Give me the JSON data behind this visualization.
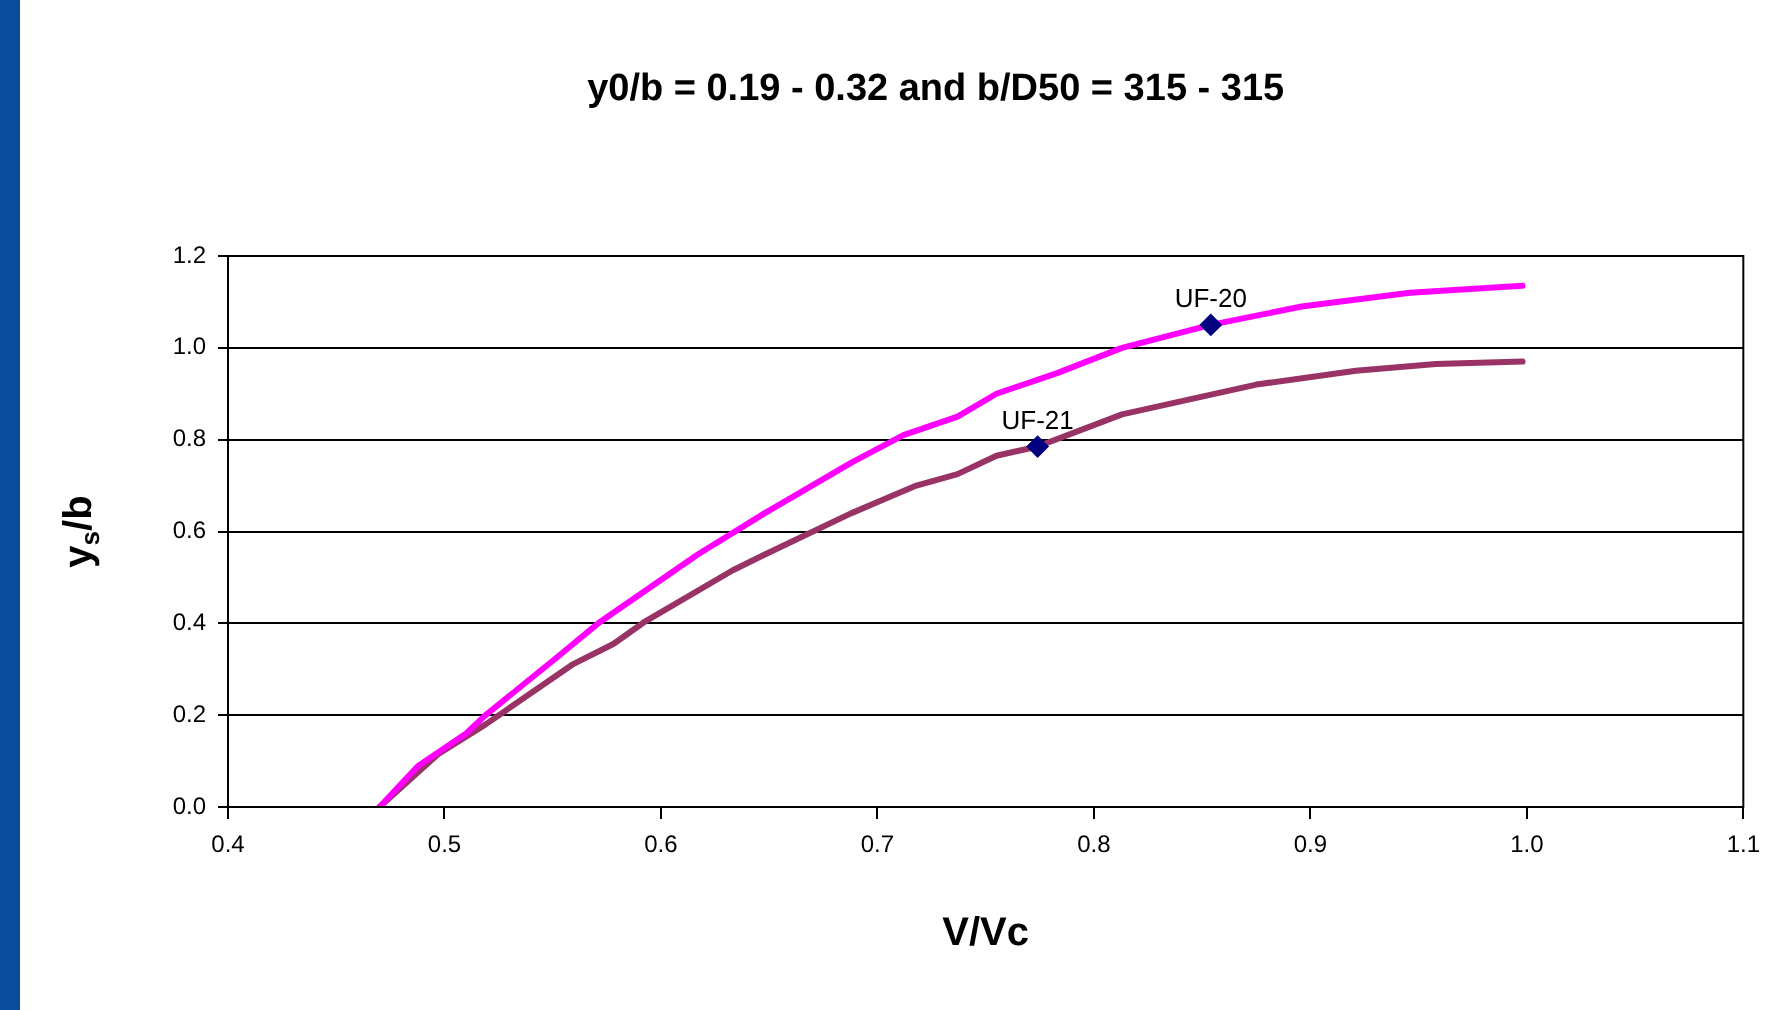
{
  "chart_data": {
    "type": "line",
    "title": "y0/b = 0.19 - 0.32 and b/D50 = 315 - 315",
    "xlabel": "V/Vc",
    "ylabel": "y$_{s}$/b",
    "xlim": [
      0.4,
      1.1
    ],
    "xticks": [
      {
        "value": 0.4,
        "label": "0.4"
      },
      {
        "value": 0.5,
        "label": "0.5"
      },
      {
        "value": 0.6,
        "label": "0.6"
      },
      {
        "value": 0.7,
        "label": "0.7"
      },
      {
        "value": 0.8,
        "label": "0.8"
      },
      {
        "value": 0.9,
        "label": "0.9"
      },
      {
        "value": 1.0,
        "label": "1.0"
      },
      {
        "value": 1.1,
        "label": "1.1"
      }
    ],
    "ylim": [
      0,
      1.2
    ],
    "yticks": [
      {
        "value": 0,
        "label": "0.0"
      },
      {
        "value": 0.2,
        "label": "0.2"
      },
      {
        "value": 0.4,
        "label": "0.4"
      },
      {
        "value": 0.6,
        "label": "0.6"
      },
      {
        "value": 0.8,
        "label": "0.8"
      },
      {
        "value": 1.0,
        "label": "1.0"
      },
      {
        "value": 1.2,
        "label": "1.2"
      }
    ],
    "grid": "y",
    "legend": false,
    "line_style": "solid",
    "series": [
      {
        "marker": "none",
        "color": "#ff00ff",
        "x": [
          0.47,
          0.488,
          0.51,
          0.519,
          0.553,
          0.571,
          0.617,
          0.648,
          0.688,
          0.712,
          0.737,
          0.755,
          0.783,
          0.813,
          0.854,
          0.896,
          0.946,
          0.998
        ],
        "values": [
          0,
          0.09,
          0.16,
          0.2,
          0.33,
          0.4,
          0.55,
          0.64,
          0.75,
          0.81,
          0.85,
          0.9,
          0.945,
          1.0,
          1.05,
          1.09,
          1.12,
          1.135
        ]
      },
      {
        "marker": "none",
        "color": "#993366",
        "x": [
          0.47,
          0.497,
          0.519,
          0.559,
          0.578,
          0.593,
          0.633,
          0.648,
          0.688,
          0.718,
          0.737,
          0.755,
          0.774,
          0.813,
          0.875,
          0.921,
          0.958,
          0.998
        ],
        "values": [
          0,
          0.115,
          0.18,
          0.31,
          0.355,
          0.405,
          0.515,
          0.55,
          0.64,
          0.7,
          0.725,
          0.765,
          0.785,
          0.855,
          0.92,
          0.95,
          0.965,
          0.97
        ]
      },
      {
        "type": "scatter",
        "marker": "diamond",
        "name": "UF-20",
        "color": "#000080",
        "x": [
          0.854
        ],
        "values": [
          1.05
        ]
      },
      {
        "type": "scatter",
        "marker": "diamond",
        "name": "UF-21",
        "color": "#000080",
        "x": [
          0.774
        ],
        "values": [
          0.785
        ]
      }
    ]
  }
}
